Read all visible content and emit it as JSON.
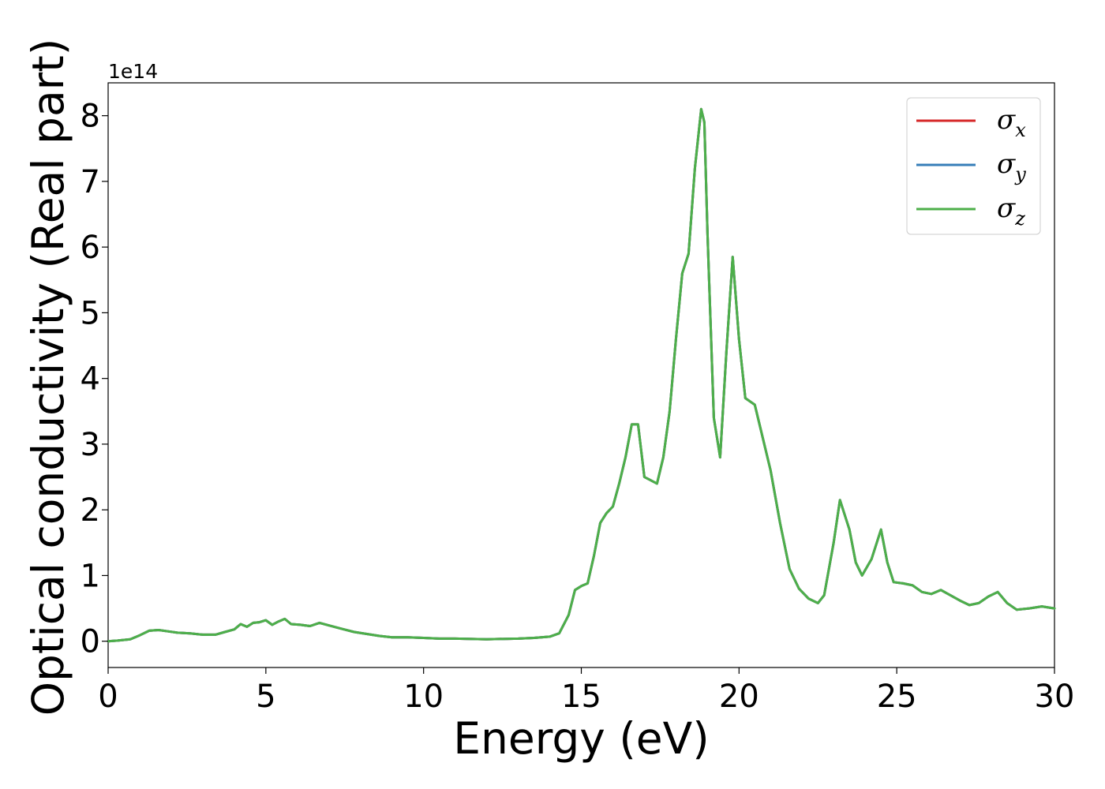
{
  "chart_data": {
    "type": "line",
    "title": "",
    "xlabel": "Energy (eV)",
    "ylabel": "Optical conductivity (Real part)",
    "y_offset_label": "1e14",
    "xlim": [
      0,
      30
    ],
    "ylim": [
      -0.4,
      8.5
    ],
    "x_scale": "linear",
    "y_scale": "linear",
    "grid": false,
    "legend_position": "top-right",
    "xticks": [
      0,
      5,
      10,
      15,
      20,
      25,
      30
    ],
    "xtick_labels": [
      "0",
      "5",
      "10",
      "15",
      "20",
      "25",
      "30"
    ],
    "yticks": [
      0,
      1,
      2,
      3,
      4,
      5,
      6,
      7,
      8
    ],
    "ytick_labels": [
      "0",
      "1",
      "2",
      "3",
      "4",
      "5",
      "6",
      "7",
      "8"
    ],
    "x": [
      0,
      0.3,
      0.7,
      1.0,
      1.3,
      1.6,
      1.9,
      2.2,
      2.6,
      3.0,
      3.4,
      3.7,
      4.0,
      4.2,
      4.4,
      4.6,
      4.8,
      5.0,
      5.2,
      5.4,
      5.6,
      5.8,
      6.1,
      6.4,
      6.7,
      7.0,
      7.4,
      7.8,
      8.2,
      8.6,
      9.0,
      9.5,
      10.0,
      10.5,
      11.0,
      12.0,
      13.0,
      13.5,
      14.0,
      14.3,
      14.6,
      14.8,
      15.0,
      15.2,
      15.4,
      15.6,
      15.8,
      16.0,
      16.2,
      16.4,
      16.6,
      16.8,
      17.0,
      17.2,
      17.4,
      17.6,
      17.8,
      18.0,
      18.2,
      18.4,
      18.6,
      18.8,
      18.9,
      19.0,
      19.2,
      19.4,
      19.6,
      19.8,
      20.0,
      20.2,
      20.5,
      20.8,
      21.0,
      21.3,
      21.6,
      21.9,
      22.2,
      22.5,
      22.7,
      23.0,
      23.2,
      23.5,
      23.7,
      23.9,
      24.2,
      24.5,
      24.7,
      24.9,
      25.2,
      25.5,
      25.8,
      26.1,
      26.4,
      26.7,
      27.0,
      27.3,
      27.6,
      27.9,
      28.2,
      28.5,
      28.8,
      29.2,
      29.6,
      30.0
    ],
    "series": [
      {
        "name": "σx",
        "color": "#d62728",
        "values": [
          0.0,
          0.01,
          0.03,
          0.09,
          0.16,
          0.17,
          0.15,
          0.13,
          0.12,
          0.1,
          0.1,
          0.14,
          0.18,
          0.26,
          0.22,
          0.28,
          0.29,
          0.32,
          0.25,
          0.3,
          0.34,
          0.26,
          0.25,
          0.23,
          0.28,
          0.24,
          0.19,
          0.14,
          0.11,
          0.08,
          0.06,
          0.06,
          0.05,
          0.04,
          0.04,
          0.03,
          0.04,
          0.05,
          0.07,
          0.12,
          0.4,
          0.78,
          0.84,
          0.88,
          1.3,
          1.8,
          1.95,
          2.05,
          2.4,
          2.8,
          3.3,
          3.3,
          2.5,
          2.45,
          2.4,
          2.8,
          3.5,
          4.6,
          5.6,
          5.9,
          7.2,
          8.1,
          7.9,
          6.2,
          3.4,
          2.8,
          4.4,
          5.85,
          4.6,
          3.7,
          3.6,
          3.0,
          2.6,
          1.8,
          1.1,
          0.8,
          0.65,
          0.58,
          0.7,
          1.5,
          2.15,
          1.7,
          1.2,
          1.0,
          1.25,
          1.7,
          1.2,
          0.9,
          0.88,
          0.85,
          0.75,
          0.72,
          0.78,
          0.7,
          0.62,
          0.55,
          0.58,
          0.68,
          0.75,
          0.58,
          0.48,
          0.5,
          0.53,
          0.5
        ]
      },
      {
        "name": "σy",
        "color": "#377eb8",
        "values": [
          0.0,
          0.01,
          0.03,
          0.09,
          0.16,
          0.17,
          0.15,
          0.13,
          0.12,
          0.1,
          0.1,
          0.14,
          0.18,
          0.26,
          0.22,
          0.28,
          0.29,
          0.32,
          0.25,
          0.3,
          0.34,
          0.26,
          0.25,
          0.23,
          0.28,
          0.24,
          0.19,
          0.14,
          0.11,
          0.08,
          0.06,
          0.06,
          0.05,
          0.04,
          0.04,
          0.03,
          0.04,
          0.05,
          0.07,
          0.12,
          0.4,
          0.78,
          0.84,
          0.88,
          1.3,
          1.8,
          1.95,
          2.05,
          2.4,
          2.8,
          3.3,
          3.3,
          2.5,
          2.45,
          2.4,
          2.8,
          3.5,
          4.6,
          5.6,
          5.9,
          7.2,
          8.1,
          7.9,
          6.2,
          3.4,
          2.8,
          4.4,
          5.85,
          4.6,
          3.7,
          3.6,
          3.0,
          2.6,
          1.8,
          1.1,
          0.8,
          0.65,
          0.58,
          0.7,
          1.5,
          2.15,
          1.7,
          1.2,
          1.0,
          1.25,
          1.7,
          1.2,
          0.9,
          0.88,
          0.85,
          0.75,
          0.72,
          0.78,
          0.7,
          0.62,
          0.55,
          0.58,
          0.68,
          0.75,
          0.58,
          0.48,
          0.5,
          0.53,
          0.5
        ]
      },
      {
        "name": "σz",
        "color": "#4daf4a",
        "values": [
          0.0,
          0.01,
          0.03,
          0.09,
          0.16,
          0.17,
          0.15,
          0.13,
          0.12,
          0.1,
          0.1,
          0.14,
          0.18,
          0.26,
          0.22,
          0.28,
          0.29,
          0.32,
          0.25,
          0.3,
          0.34,
          0.26,
          0.25,
          0.23,
          0.28,
          0.24,
          0.19,
          0.14,
          0.11,
          0.08,
          0.06,
          0.06,
          0.05,
          0.04,
          0.04,
          0.03,
          0.04,
          0.05,
          0.07,
          0.12,
          0.4,
          0.78,
          0.84,
          0.88,
          1.3,
          1.8,
          1.95,
          2.05,
          2.4,
          2.8,
          3.3,
          3.3,
          2.5,
          2.45,
          2.4,
          2.8,
          3.5,
          4.6,
          5.6,
          5.9,
          7.2,
          8.1,
          7.9,
          6.2,
          3.4,
          2.8,
          4.4,
          5.85,
          4.6,
          3.7,
          3.6,
          3.0,
          2.6,
          1.8,
          1.1,
          0.8,
          0.65,
          0.58,
          0.7,
          1.5,
          2.15,
          1.7,
          1.2,
          1.0,
          1.25,
          1.7,
          1.2,
          0.9,
          0.88,
          0.85,
          0.75,
          0.72,
          0.78,
          0.7,
          0.62,
          0.55,
          0.58,
          0.68,
          0.75,
          0.58,
          0.48,
          0.5,
          0.53,
          0.5
        ]
      }
    ],
    "legend": [
      {
        "base": "σ",
        "sub": "x",
        "color": "#d62728"
      },
      {
        "base": "σ",
        "sub": "y",
        "color": "#377eb8"
      },
      {
        "base": "σ",
        "sub": "z",
        "color": "#4daf4a"
      }
    ]
  }
}
